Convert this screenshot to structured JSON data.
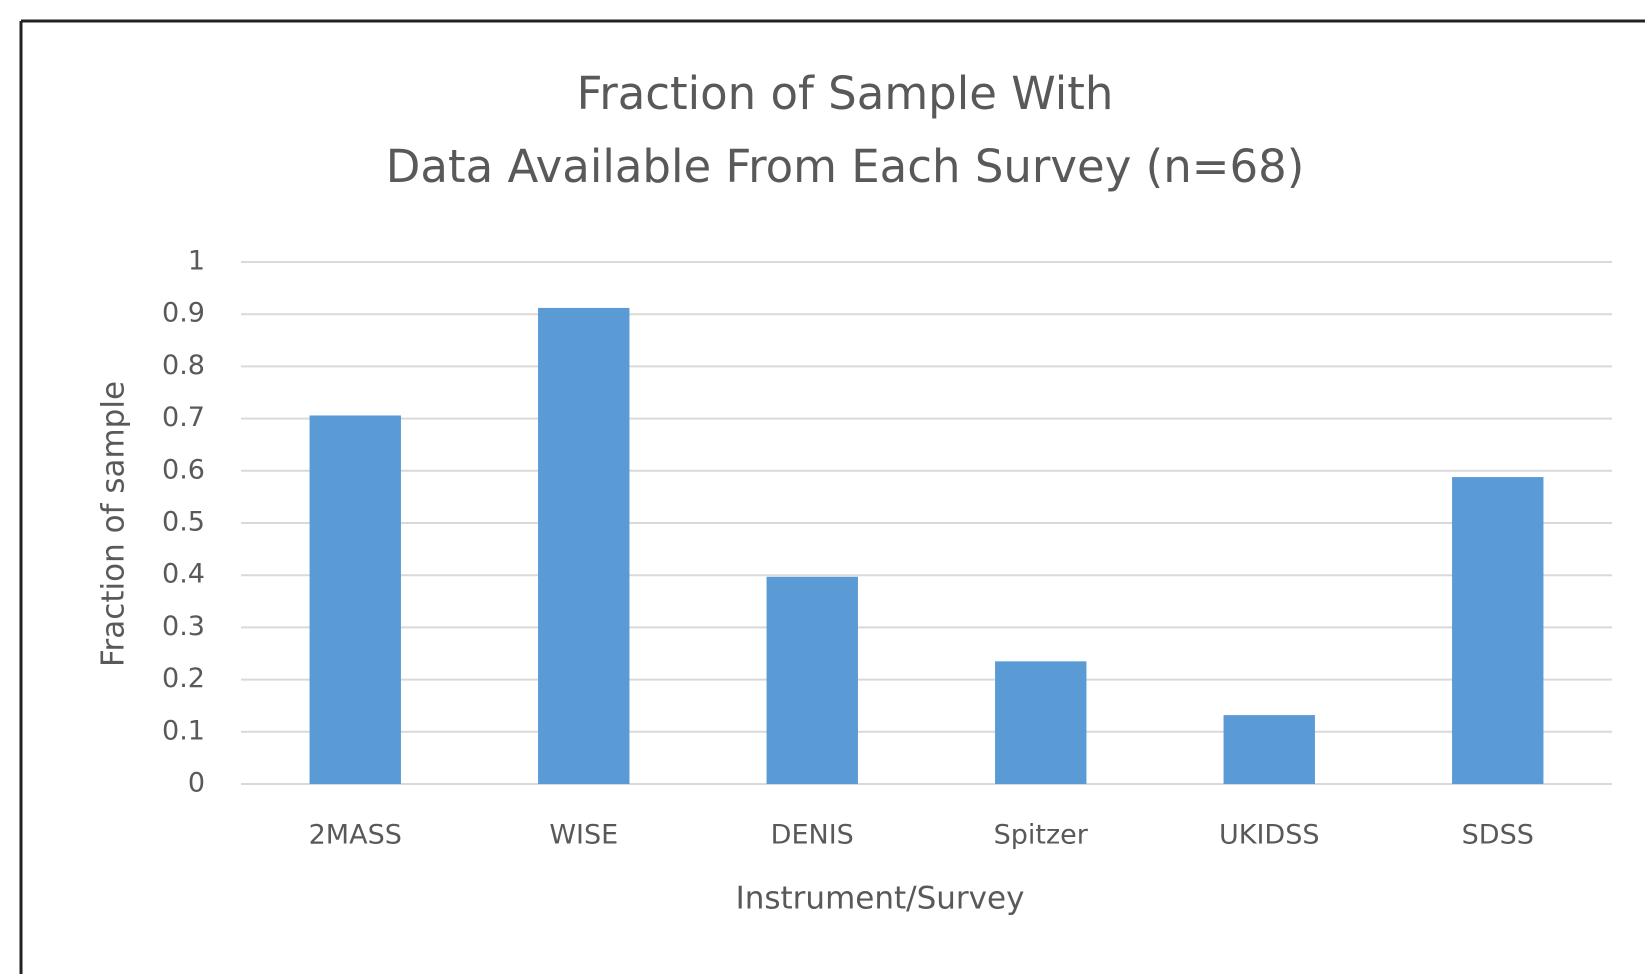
{
  "chart_data": {
    "type": "bar",
    "title": [
      "Fraction of Sample With",
      "Data Available From Each Survey (n=68)"
    ],
    "x_label": "Instrument/Survey",
    "y_label": "Fraction of sample",
    "categories": [
      "2MASS",
      "WISE",
      "DENIS",
      "Spitzer",
      "UKIDSS",
      "SDSS"
    ],
    "values": [
      0.706,
      0.912,
      0.397,
      0.235,
      0.132,
      0.588
    ],
    "color": "#5b9bd5",
    "ylim": [
      0,
      1
    ],
    "yticks": [
      0,
      0.1,
      0.2,
      0.3,
      0.4,
      0.5,
      0.6,
      0.7,
      0.8,
      0.9,
      1
    ],
    "grid": true
  }
}
